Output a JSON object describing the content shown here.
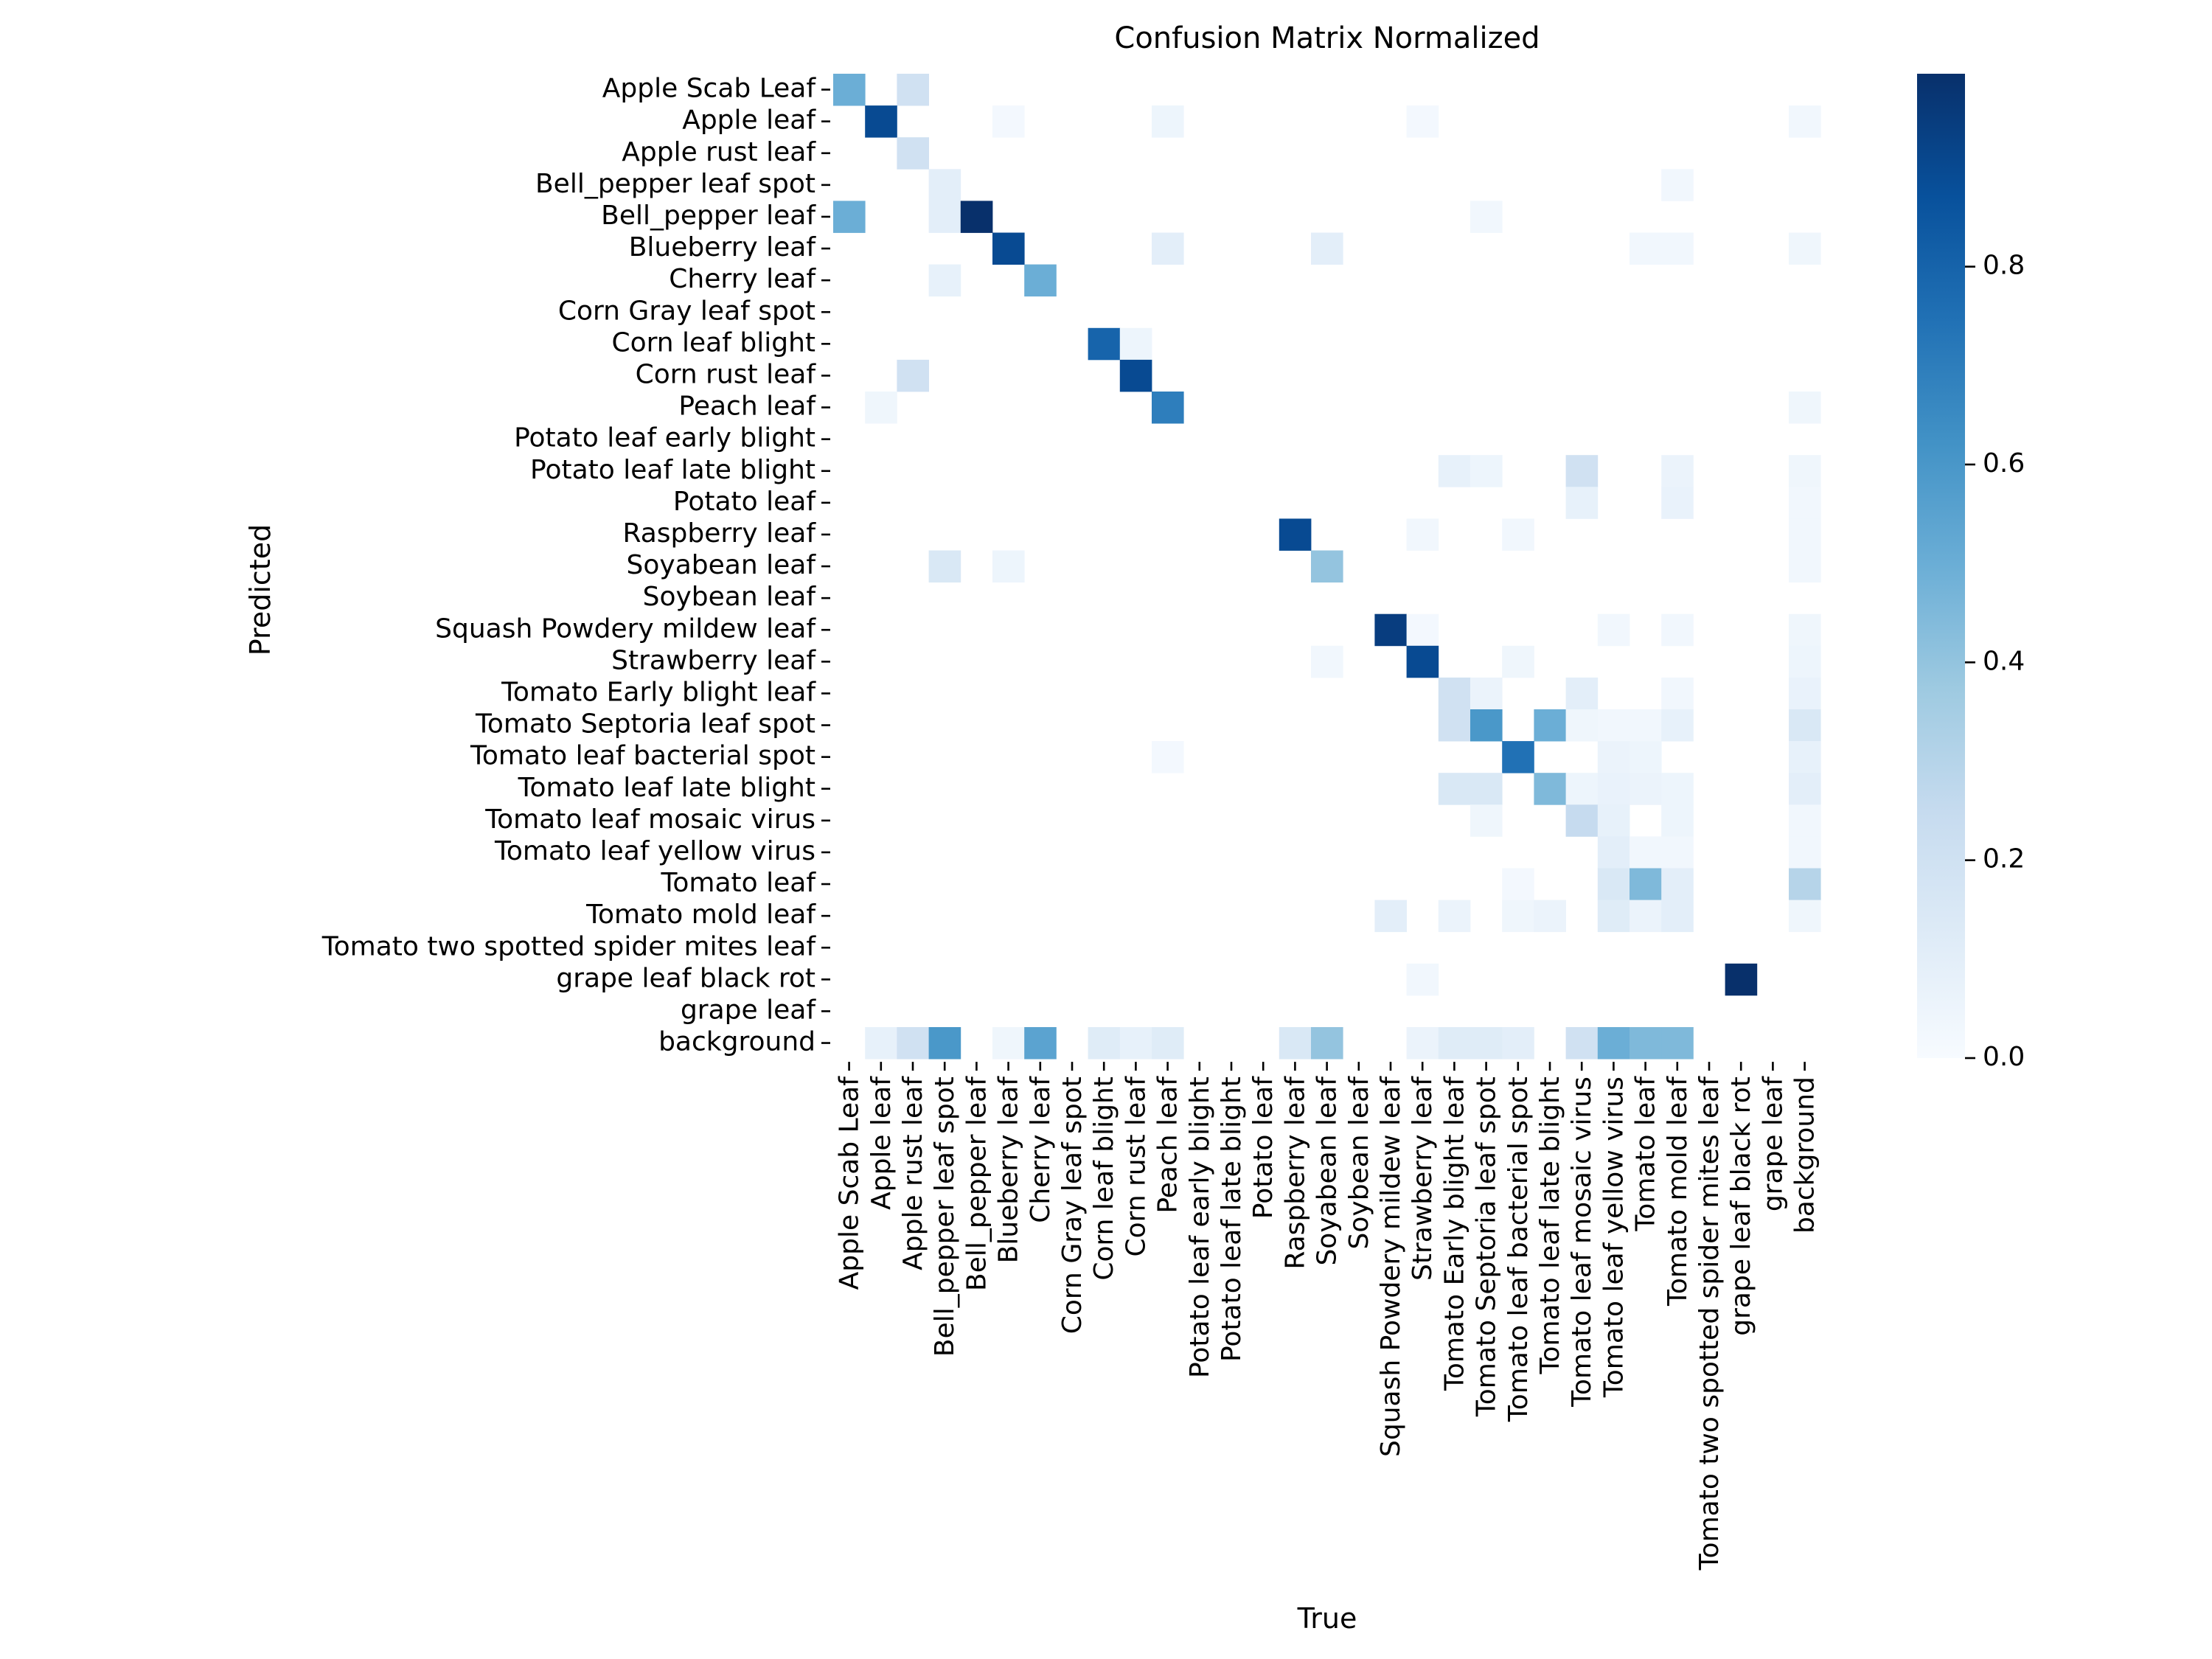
{
  "chart_data": {
    "type": "heatmap",
    "title": "Confusion Matrix Normalized",
    "xlabel": "True",
    "ylabel": "Predicted",
    "labels": [
      "Apple Scab Leaf",
      "Apple leaf",
      "Apple rust leaf",
      "Bell_pepper leaf spot",
      "Bell_pepper leaf",
      "Blueberry leaf",
      "Cherry leaf",
      "Corn Gray leaf spot",
      "Corn leaf blight",
      "Corn rust leaf",
      "Peach leaf",
      "Potato leaf early blight",
      "Potato leaf late blight",
      "Potato leaf",
      "Raspberry leaf",
      "Soyabean leaf",
      "Soybean leaf",
      "Squash Powdery mildew leaf",
      "Strawberry leaf",
      "Tomato Early blight leaf",
      "Tomato Septoria leaf spot",
      "Tomato leaf bacterial spot",
      "Tomato leaf late blight",
      "Tomato leaf mosaic virus",
      "Tomato leaf yellow virus",
      "Tomato leaf",
      "Tomato mold leaf",
      "Tomato two spotted spider mites leaf",
      "grape leaf black rot",
      "grape leaf",
      "background"
    ],
    "colorbar": {
      "min": 0.0,
      "max": 1.0,
      "ticks": [
        "0.0",
        "0.2",
        "0.4",
        "0.6",
        "0.8"
      ],
      "tick_values": [
        0,
        0.2,
        0.4,
        0.6,
        0.8
      ],
      "colormap": "Blues"
    },
    "cells": [
      [
        0,
        0,
        0.5
      ],
      [
        0,
        2,
        0.2
      ],
      [
        1,
        1,
        0.9
      ],
      [
        1,
        5,
        0.02
      ],
      [
        1,
        10,
        0.05
      ],
      [
        1,
        18,
        0.02
      ],
      [
        1,
        30,
        0.03
      ],
      [
        2,
        2,
        0.2
      ],
      [
        3,
        3,
        0.1
      ],
      [
        3,
        26,
        0.03
      ],
      [
        4,
        0,
        0.5
      ],
      [
        4,
        3,
        0.1
      ],
      [
        4,
        4,
        1.0
      ],
      [
        4,
        20,
        0.03
      ],
      [
        5,
        5,
        0.9
      ],
      [
        5,
        10,
        0.1
      ],
      [
        5,
        15,
        0.1
      ],
      [
        5,
        25,
        0.03
      ],
      [
        5,
        26,
        0.03
      ],
      [
        5,
        30,
        0.04
      ],
      [
        6,
        3,
        0.08
      ],
      [
        6,
        6,
        0.5
      ],
      [
        8,
        8,
        0.8
      ],
      [
        8,
        9,
        0.05
      ],
      [
        9,
        2,
        0.2
      ],
      [
        9,
        9,
        0.9
      ],
      [
        10,
        1,
        0.04
      ],
      [
        10,
        10,
        0.7
      ],
      [
        10,
        30,
        0.04
      ],
      [
        12,
        19,
        0.08
      ],
      [
        12,
        20,
        0.05
      ],
      [
        12,
        23,
        0.2
      ],
      [
        12,
        26,
        0.06
      ],
      [
        12,
        30,
        0.04
      ],
      [
        13,
        23,
        0.08
      ],
      [
        13,
        26,
        0.07
      ],
      [
        13,
        30,
        0.03
      ],
      [
        14,
        14,
        0.9
      ],
      [
        14,
        18,
        0.03
      ],
      [
        14,
        21,
        0.03
      ],
      [
        14,
        30,
        0.03
      ],
      [
        15,
        3,
        0.15
      ],
      [
        15,
        5,
        0.05
      ],
      [
        15,
        15,
        0.4
      ],
      [
        15,
        30,
        0.03
      ],
      [
        17,
        17,
        0.95
      ],
      [
        17,
        18,
        0.02
      ],
      [
        17,
        24,
        0.03
      ],
      [
        17,
        26,
        0.03
      ],
      [
        17,
        30,
        0.04
      ],
      [
        18,
        15,
        0.03
      ],
      [
        18,
        18,
        0.9
      ],
      [
        18,
        21,
        0.04
      ],
      [
        18,
        30,
        0.05
      ],
      [
        19,
        19,
        0.2
      ],
      [
        19,
        20,
        0.06
      ],
      [
        19,
        23,
        0.1
      ],
      [
        19,
        26,
        0.03
      ],
      [
        19,
        30,
        0.07
      ],
      [
        20,
        19,
        0.2
      ],
      [
        20,
        20,
        0.6
      ],
      [
        20,
        22,
        0.5
      ],
      [
        20,
        23,
        0.04
      ],
      [
        20,
        24,
        0.03
      ],
      [
        20,
        25,
        0.03
      ],
      [
        20,
        26,
        0.08
      ],
      [
        20,
        30,
        0.15
      ],
      [
        21,
        10,
        0.02
      ],
      [
        21,
        21,
        0.75
      ],
      [
        21,
        24,
        0.06
      ],
      [
        21,
        25,
        0.05
      ],
      [
        21,
        30,
        0.08
      ],
      [
        22,
        19,
        0.15
      ],
      [
        22,
        20,
        0.15
      ],
      [
        22,
        22,
        0.45
      ],
      [
        22,
        23,
        0.05
      ],
      [
        22,
        24,
        0.07
      ],
      [
        22,
        25,
        0.06
      ],
      [
        22,
        26,
        0.05
      ],
      [
        22,
        30,
        0.1
      ],
      [
        23,
        20,
        0.04
      ],
      [
        23,
        23,
        0.25
      ],
      [
        23,
        24,
        0.08
      ],
      [
        23,
        26,
        0.05
      ],
      [
        23,
        30,
        0.03
      ],
      [
        24,
        24,
        0.1
      ],
      [
        24,
        25,
        0.03
      ],
      [
        24,
        26,
        0.03
      ],
      [
        24,
        30,
        0.03
      ],
      [
        25,
        21,
        0.02
      ],
      [
        25,
        24,
        0.15
      ],
      [
        25,
        25,
        0.45
      ],
      [
        25,
        26,
        0.1
      ],
      [
        25,
        30,
        0.3
      ],
      [
        26,
        17,
        0.1
      ],
      [
        26,
        19,
        0.06
      ],
      [
        26,
        21,
        0.04
      ],
      [
        26,
        22,
        0.06
      ],
      [
        26,
        24,
        0.12
      ],
      [
        26,
        25,
        0.06
      ],
      [
        26,
        26,
        0.1
      ],
      [
        26,
        30,
        0.04
      ],
      [
        28,
        18,
        0.03
      ],
      [
        28,
        28,
        1.0
      ],
      [
        30,
        1,
        0.08
      ],
      [
        30,
        2,
        0.2
      ],
      [
        30,
        3,
        0.6
      ],
      [
        30,
        5,
        0.04
      ],
      [
        30,
        6,
        0.55
      ],
      [
        30,
        8,
        0.12
      ],
      [
        30,
        9,
        0.08
      ],
      [
        30,
        10,
        0.12
      ],
      [
        30,
        14,
        0.15
      ],
      [
        30,
        15,
        0.4
      ],
      [
        30,
        18,
        0.06
      ],
      [
        30,
        19,
        0.12
      ],
      [
        30,
        20,
        0.12
      ],
      [
        30,
        21,
        0.1
      ],
      [
        30,
        23,
        0.2
      ],
      [
        30,
        24,
        0.5
      ],
      [
        30,
        25,
        0.45
      ],
      [
        30,
        26,
        0.45
      ]
    ]
  }
}
